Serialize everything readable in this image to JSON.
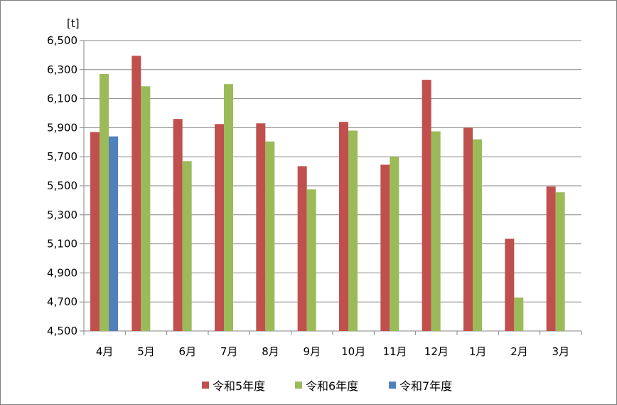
{
  "chart_data": {
    "type": "bar",
    "unit_label": "[t]",
    "categories": [
      "4月",
      "5月",
      "6月",
      "7月",
      "8月",
      "9月",
      "10月",
      "11月",
      "12月",
      "1月",
      "2月",
      "3月"
    ],
    "series": [
      {
        "name": "令和5年度",
        "color": "#C0504D",
        "values": [
          5870,
          6395,
          5960,
          5925,
          5930,
          5635,
          5940,
          5645,
          6230,
          5900,
          5135,
          5495
        ]
      },
      {
        "name": "令和6年度",
        "color": "#9BBB59",
        "values": [
          6270,
          6185,
          5670,
          6200,
          5805,
          5475,
          5880,
          5700,
          5875,
          5820,
          4730,
          5455
        ]
      },
      {
        "name": "令和7年度",
        "color": "#4F81BD",
        "values": [
          5840,
          null,
          null,
          null,
          null,
          null,
          null,
          null,
          null,
          null,
          null,
          null
        ]
      }
    ],
    "ylim": [
      4500,
      6500
    ],
    "yticks": [
      "4,500",
      "4,700",
      "4,900",
      "5,100",
      "5,300",
      "5,500",
      "5,700",
      "5,900",
      "6,100",
      "6,300",
      "6,500"
    ],
    "grid": true,
    "legend": "bottom"
  }
}
